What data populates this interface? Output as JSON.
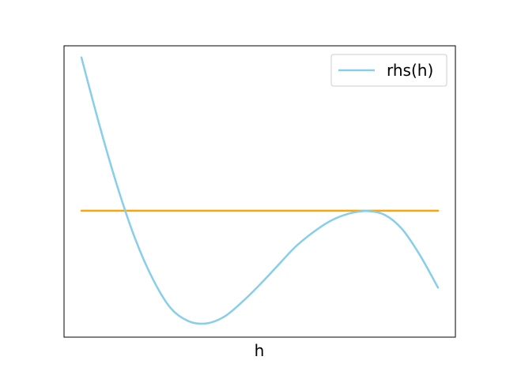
{
  "chart_data": {
    "type": "line",
    "xlabel": "h",
    "ylabel": "",
    "title": "",
    "x_ticks_shown": false,
    "y_ticks_shown": false,
    "grid": false,
    "legend_position": "upper-right",
    "xlim": [
      0,
      1
    ],
    "ylim": [
      0,
      1
    ],
    "series": [
      {
        "name": "rhs(h)",
        "color": "#87CEEB",
        "x": [
          0.0,
          0.05,
          0.1,
          0.15,
          0.2,
          0.25,
          0.3,
          0.35,
          0.4,
          0.45,
          0.5,
          0.55,
          0.6,
          0.65,
          0.7,
          0.75,
          0.8,
          0.85,
          0.9,
          0.95,
          1.0
        ],
        "y": [
          0.96,
          0.73,
          0.52,
          0.34,
          0.2,
          0.1,
          0.055,
          0.047,
          0.07,
          0.12,
          0.18,
          0.245,
          0.31,
          0.36,
          0.4,
          0.424,
          0.433,
          0.42,
          0.37,
          0.28,
          0.17
        ]
      },
      {
        "name": "",
        "color": "#FFA500",
        "x": [
          0.0,
          1.0
        ],
        "y": [
          0.434,
          0.434
        ]
      }
    ]
  }
}
